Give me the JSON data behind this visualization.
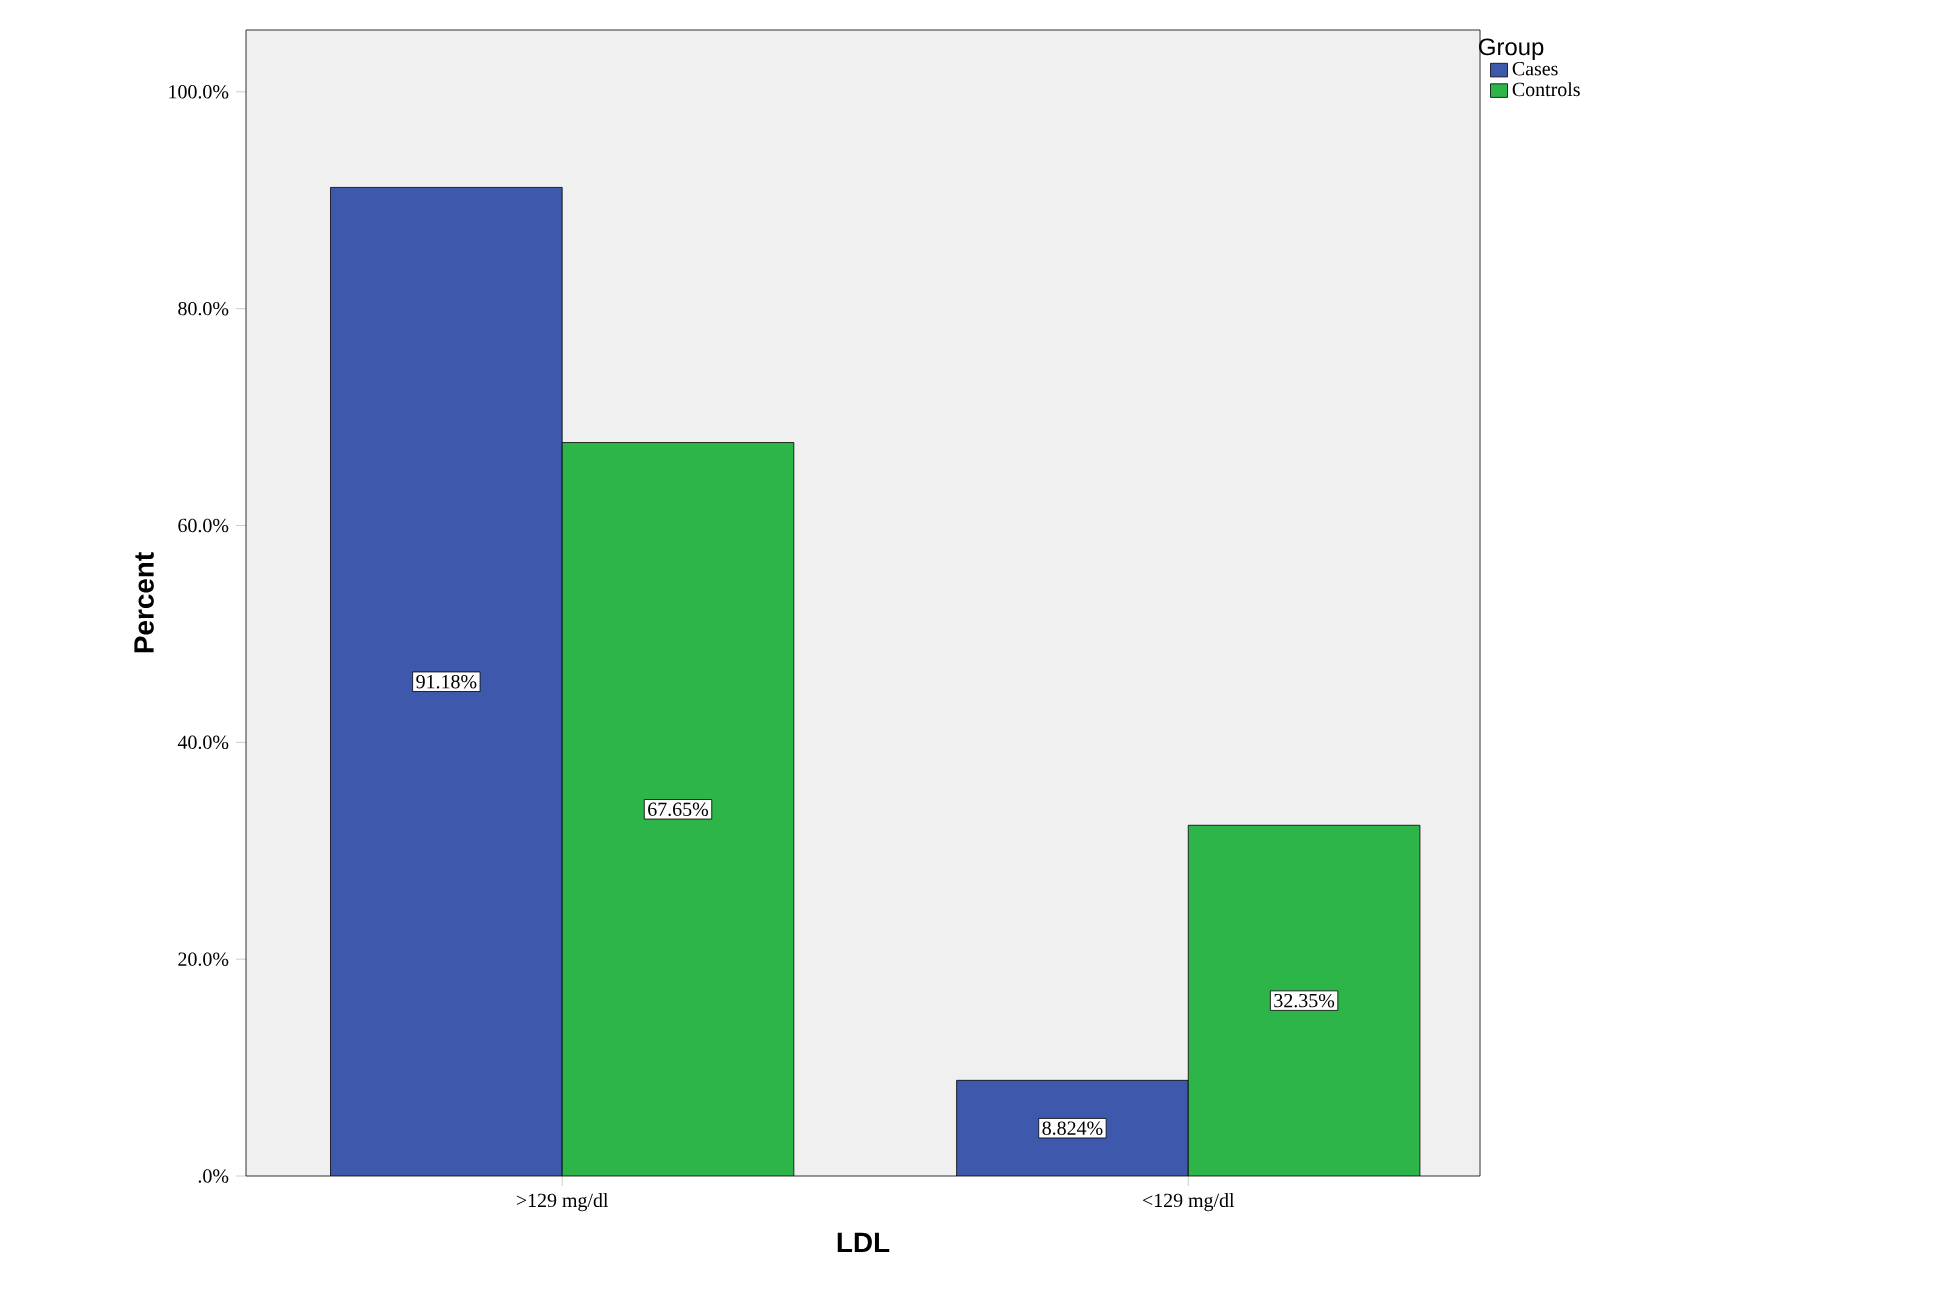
{
  "chart_data": {
    "type": "bar",
    "xlabel": "LDL",
    "ylabel": "Percent",
    "legend_title": "Group",
    "legend": "top right",
    "categories": [
      ">129 mg/dl",
      "<129 mg/dl"
    ],
    "series": [
      {
        "name": "Cases",
        "color": "#3e58ac",
        "values": [
          91.18,
          8.824
        ],
        "value_labels": [
          "91.18%",
          "8.824%"
        ]
      },
      {
        "name": "Controls",
        "color": "#2db54a",
        "values": [
          67.65,
          32.35
        ],
        "value_labels": [
          "67.65%",
          "32.35%"
        ]
      }
    ],
    "ylim": [
      0,
      105.7
    ],
    "yticks": [
      {
        "value": 0,
        "label": ".0%"
      },
      {
        "value": 20,
        "label": "20.0%"
      },
      {
        "value": 40,
        "label": "40.0%"
      },
      {
        "value": 60,
        "label": "60.0%"
      },
      {
        "value": 80,
        "label": "80.0%"
      },
      {
        "value": 100,
        "label": "100.0%"
      }
    ]
  }
}
